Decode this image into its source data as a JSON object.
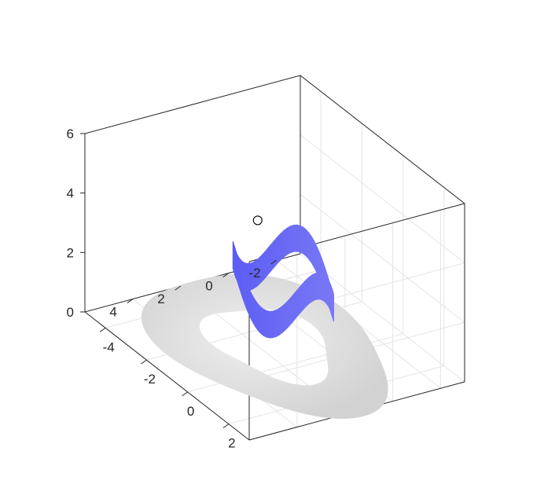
{
  "chart_data": {
    "type": "surface3d",
    "title": "",
    "xlabel": "",
    "ylabel": "",
    "zlabel": "",
    "xlim": [
      -5,
      3
    ],
    "ylim": [
      -3,
      6
    ],
    "zlim": [
      0,
      6
    ],
    "x_ticks": [
      -4,
      -2,
      0,
      2
    ],
    "y_ticks": [
      -2,
      0,
      2,
      4
    ],
    "z_ticks": [
      0,
      2,
      4,
      6
    ],
    "x_tick_labels": [
      "-4",
      "-2",
      "0",
      "2"
    ],
    "y_tick_labels": [
      "-2",
      "0",
      "2",
      "4"
    ],
    "z_tick_labels": [
      "0",
      "2",
      "4",
      "6"
    ],
    "grid": true,
    "surface_color": "#4c4cf5",
    "shadow_color": "#d4d4d4",
    "marker": {
      "x": 0.5,
      "y": 3.5,
      "z": 5.5,
      "style": "open-circle"
    },
    "series": [
      {
        "kind": "ring-surface",
        "center": [
          0,
          2
        ],
        "radius": 1.6,
        "z_base": 2.4,
        "z_amplitude": 0.7,
        "waves": 3
      },
      {
        "kind": "floor-shadow",
        "center": [
          -1.2,
          1.5
        ],
        "outer_radius": 4.2,
        "inner_radius": 2.2,
        "z": 0
      }
    ]
  }
}
